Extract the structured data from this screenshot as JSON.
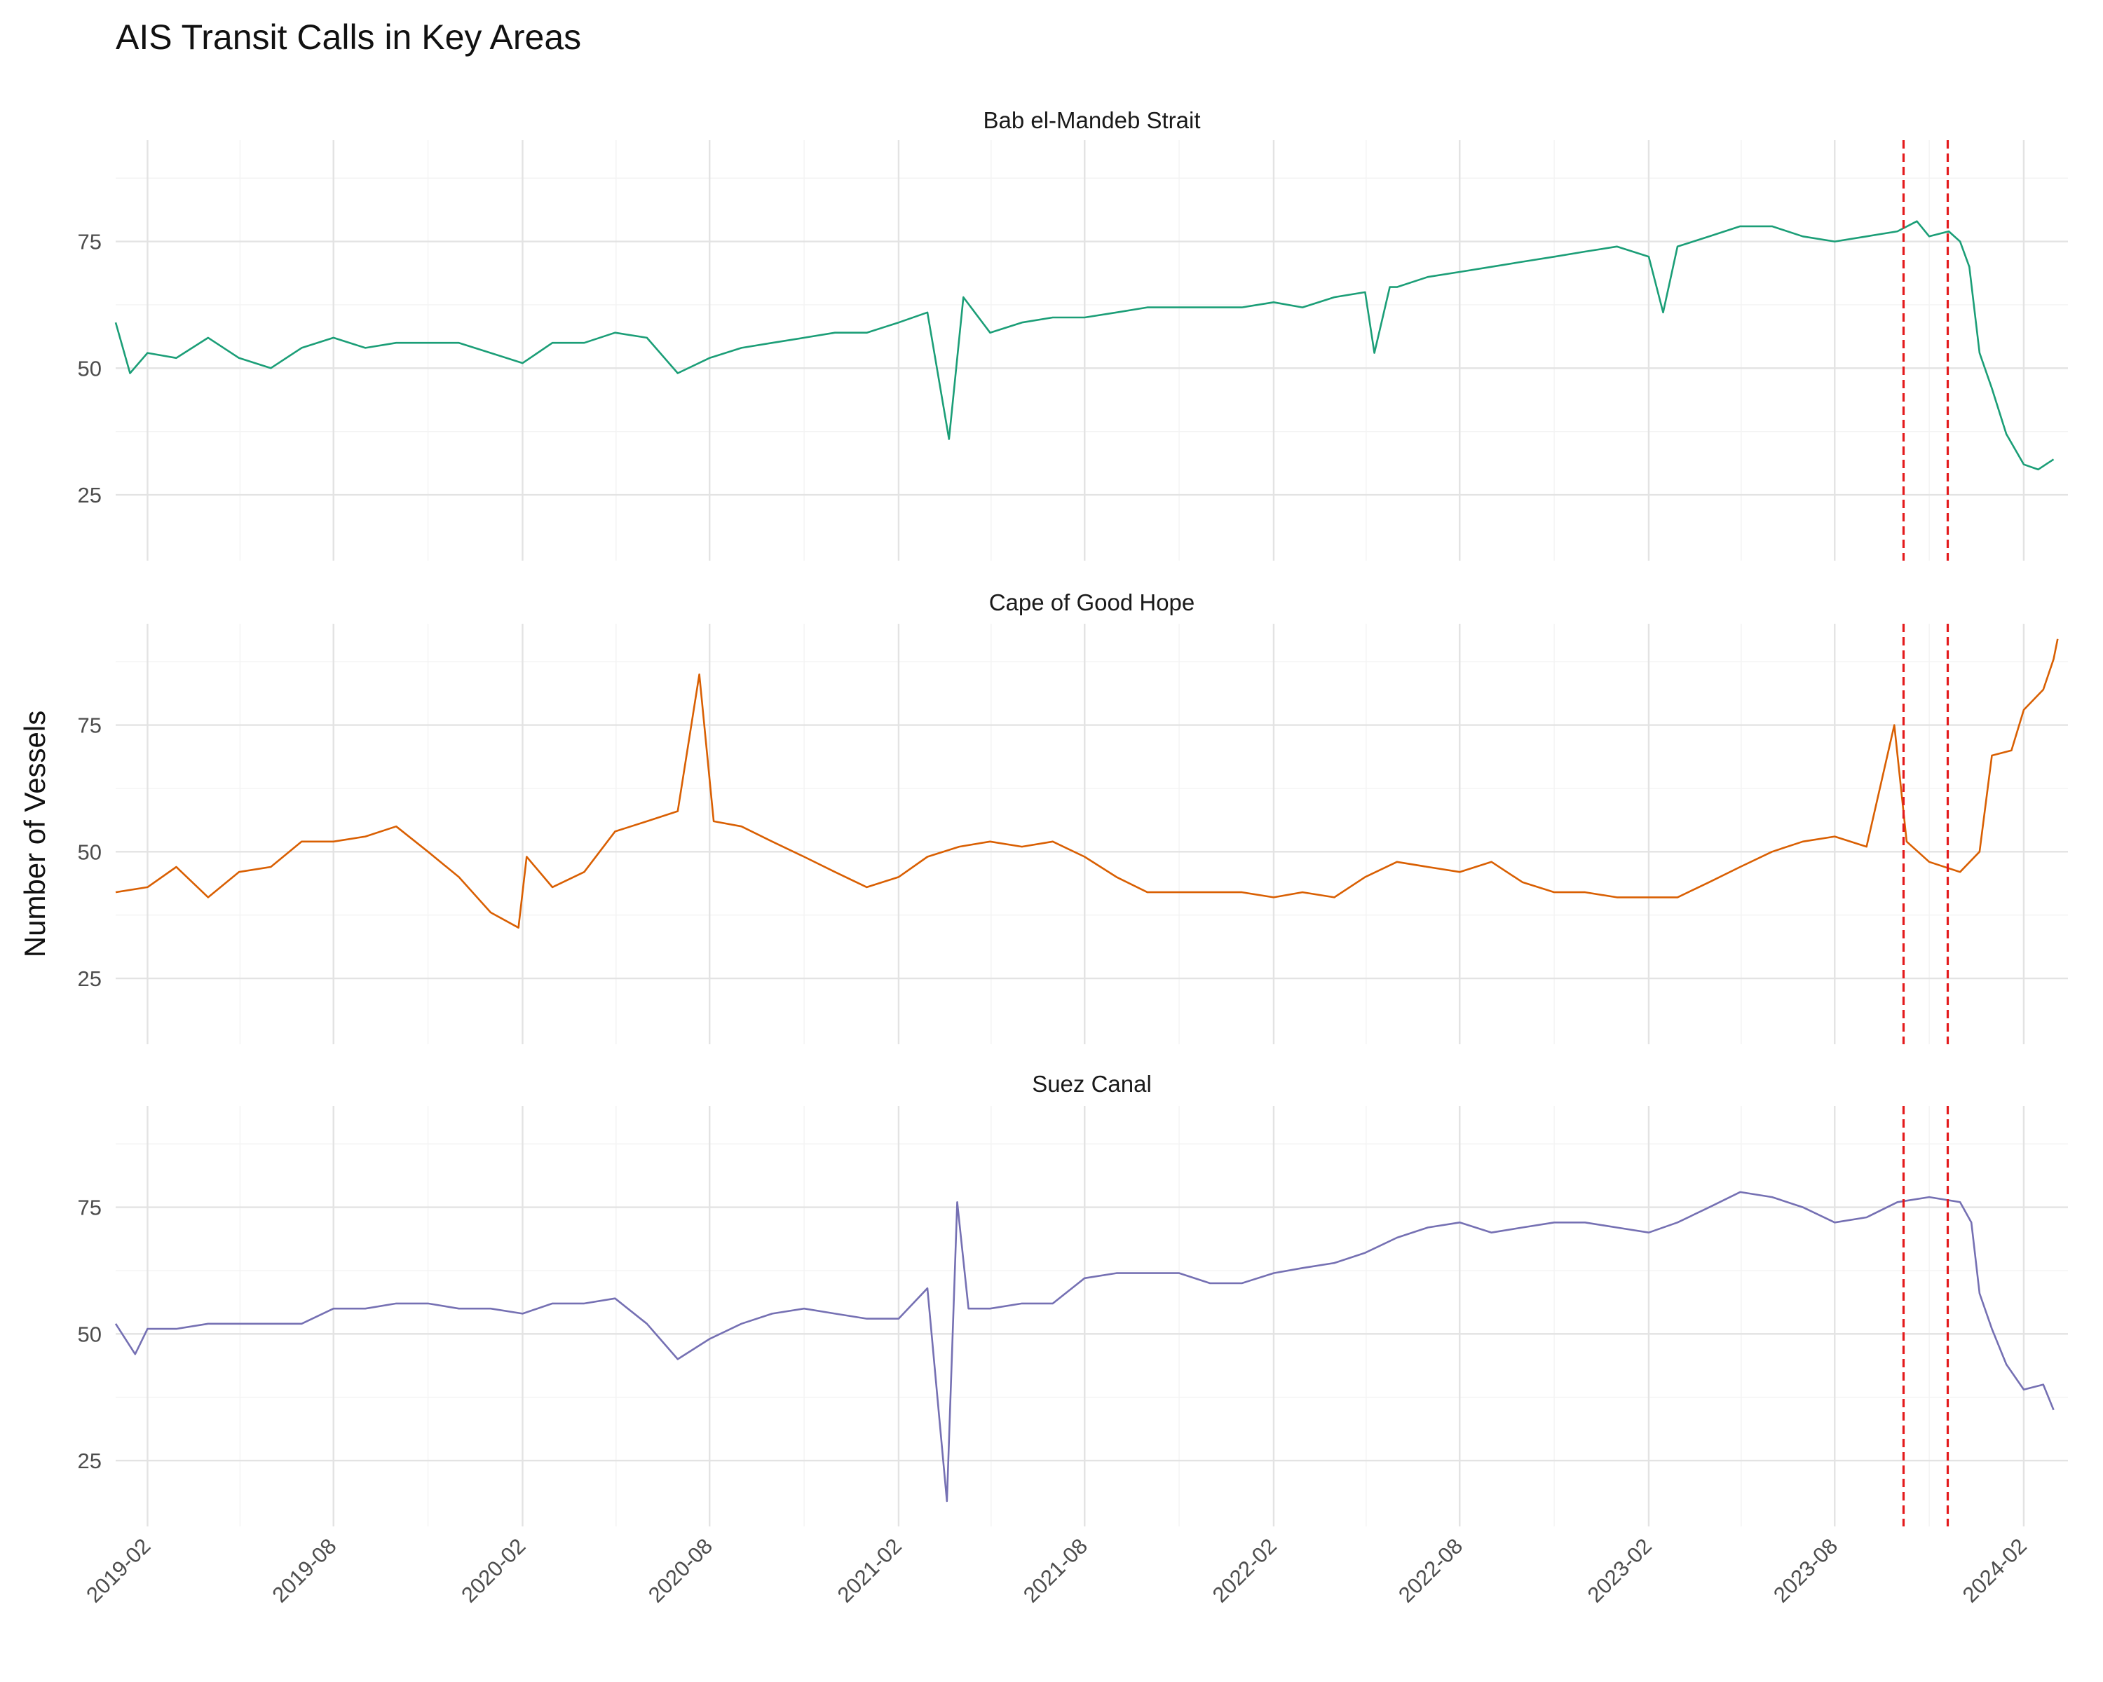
{
  "chart_data": {
    "type": "line",
    "title": "AIS Transit Calls in Key Areas",
    "ylabel": "Number of Vessels",
    "xlabel": "",
    "layout": "3 facets stacked vertically, shared x-axis",
    "x_range": [
      "2019-01-01",
      "2024-03-15"
    ],
    "ylim": [
      12,
      95
    ],
    "y_ticks": [
      25,
      50,
      75
    ],
    "x_ticks": [
      "2019-02",
      "2019-08",
      "2020-02",
      "2020-08",
      "2021-02",
      "2021-08",
      "2022-02",
      "2022-08",
      "2023-02",
      "2023-08",
      "2024-02"
    ],
    "reference_lines": {
      "style": "dashed",
      "color": "#e41a1c",
      "x": [
        "2023-10-07",
        "2023-11-19"
      ]
    },
    "grid": true,
    "legend": "none",
    "series": [
      {
        "name": "Bab el-Mandeb Strait",
        "color": "#1b9e77",
        "points": [
          [
            "2019-01-01",
            59
          ],
          [
            "2019-01-15",
            49
          ],
          [
            "2019-02-01",
            53
          ],
          [
            "2019-03-01",
            52
          ],
          [
            "2019-04-01",
            56
          ],
          [
            "2019-05-01",
            52
          ],
          [
            "2019-06-01",
            50
          ],
          [
            "2019-07-01",
            54
          ],
          [
            "2019-08-01",
            56
          ],
          [
            "2019-09-01",
            54
          ],
          [
            "2019-10-01",
            55
          ],
          [
            "2019-11-01",
            55
          ],
          [
            "2019-12-01",
            55
          ],
          [
            "2020-01-01",
            53
          ],
          [
            "2020-02-01",
            51
          ],
          [
            "2020-03-01",
            55
          ],
          [
            "2020-04-01",
            55
          ],
          [
            "2020-05-01",
            57
          ],
          [
            "2020-06-01",
            56
          ],
          [
            "2020-07-01",
            49
          ],
          [
            "2020-08-01",
            52
          ],
          [
            "2020-09-01",
            54
          ],
          [
            "2020-10-01",
            55
          ],
          [
            "2020-11-01",
            56
          ],
          [
            "2020-12-01",
            57
          ],
          [
            "2021-01-01",
            57
          ],
          [
            "2021-02-01",
            59
          ],
          [
            "2021-03-01",
            61
          ],
          [
            "2021-03-22",
            36
          ],
          [
            "2021-04-05",
            64
          ],
          [
            "2021-05-01",
            57
          ],
          [
            "2021-06-01",
            59
          ],
          [
            "2021-07-01",
            60
          ],
          [
            "2021-08-01",
            60
          ],
          [
            "2021-09-01",
            61
          ],
          [
            "2021-10-01",
            62
          ],
          [
            "2021-11-01",
            62
          ],
          [
            "2021-12-01",
            62
          ],
          [
            "2022-01-01",
            62
          ],
          [
            "2022-02-01",
            63
          ],
          [
            "2022-03-01",
            62
          ],
          [
            "2022-04-01",
            64
          ],
          [
            "2022-05-01",
            65
          ],
          [
            "2022-05-10",
            53
          ],
          [
            "2022-05-25",
            66
          ],
          [
            "2022-06-01",
            66
          ],
          [
            "2022-07-01",
            68
          ],
          [
            "2022-08-01",
            69
          ],
          [
            "2022-09-01",
            70
          ],
          [
            "2022-10-01",
            71
          ],
          [
            "2022-11-01",
            72
          ],
          [
            "2022-12-01",
            73
          ],
          [
            "2023-01-01",
            74
          ],
          [
            "2023-02-01",
            72
          ],
          [
            "2023-02-15",
            61
          ],
          [
            "2023-03-01",
            74
          ],
          [
            "2023-04-01",
            76
          ],
          [
            "2023-05-01",
            78
          ],
          [
            "2023-06-01",
            78
          ],
          [
            "2023-07-01",
            76
          ],
          [
            "2023-08-01",
            75
          ],
          [
            "2023-09-01",
            76
          ],
          [
            "2023-10-01",
            77
          ],
          [
            "2023-10-20",
            79
          ],
          [
            "2023-11-01",
            76
          ],
          [
            "2023-11-20",
            77
          ],
          [
            "2023-12-01",
            75
          ],
          [
            "2023-12-10",
            70
          ],
          [
            "2023-12-20",
            53
          ],
          [
            "2024-01-01",
            46
          ],
          [
            "2024-01-15",
            37
          ],
          [
            "2024-02-01",
            31
          ],
          [
            "2024-02-15",
            30
          ],
          [
            "2024-03-01",
            32
          ]
        ]
      },
      {
        "name": "Cape of Good Hope",
        "color": "#d95f02",
        "points": [
          [
            "2019-01-01",
            42
          ],
          [
            "2019-02-01",
            43
          ],
          [
            "2019-03-01",
            47
          ],
          [
            "2019-04-01",
            41
          ],
          [
            "2019-05-01",
            46
          ],
          [
            "2019-06-01",
            47
          ],
          [
            "2019-07-01",
            52
          ],
          [
            "2019-08-01",
            52
          ],
          [
            "2019-09-01",
            53
          ],
          [
            "2019-10-01",
            55
          ],
          [
            "2019-11-01",
            50
          ],
          [
            "2019-12-01",
            45
          ],
          [
            "2020-01-01",
            38
          ],
          [
            "2020-01-28",
            35
          ],
          [
            "2020-02-05",
            49
          ],
          [
            "2020-03-01",
            43
          ],
          [
            "2020-04-01",
            46
          ],
          [
            "2020-05-01",
            54
          ],
          [
            "2020-06-01",
            56
          ],
          [
            "2020-07-01",
            58
          ],
          [
            "2020-07-22",
            85
          ],
          [
            "2020-08-05",
            56
          ],
          [
            "2020-09-01",
            55
          ],
          [
            "2020-10-01",
            52
          ],
          [
            "2020-11-01",
            49
          ],
          [
            "2020-12-01",
            46
          ],
          [
            "2021-01-01",
            43
          ],
          [
            "2021-02-01",
            45
          ],
          [
            "2021-03-01",
            49
          ],
          [
            "2021-04-01",
            51
          ],
          [
            "2021-05-01",
            52
          ],
          [
            "2021-06-01",
            51
          ],
          [
            "2021-07-01",
            52
          ],
          [
            "2021-08-01",
            49
          ],
          [
            "2021-09-01",
            45
          ],
          [
            "2021-10-01",
            42
          ],
          [
            "2021-11-01",
            42
          ],
          [
            "2021-12-01",
            42
          ],
          [
            "2022-01-01",
            42
          ],
          [
            "2022-02-01",
            41
          ],
          [
            "2022-03-01",
            42
          ],
          [
            "2022-04-01",
            41
          ],
          [
            "2022-05-01",
            45
          ],
          [
            "2022-06-01",
            48
          ],
          [
            "2022-07-01",
            47
          ],
          [
            "2022-08-01",
            46
          ],
          [
            "2022-09-01",
            48
          ],
          [
            "2022-10-01",
            44
          ],
          [
            "2022-11-01",
            42
          ],
          [
            "2022-12-01",
            42
          ],
          [
            "2023-01-01",
            41
          ],
          [
            "2023-02-01",
            41
          ],
          [
            "2023-03-01",
            41
          ],
          [
            "2023-04-01",
            44
          ],
          [
            "2023-05-01",
            47
          ],
          [
            "2023-06-01",
            50
          ],
          [
            "2023-07-01",
            52
          ],
          [
            "2023-08-01",
            53
          ],
          [
            "2023-09-01",
            51
          ],
          [
            "2023-09-28",
            75
          ],
          [
            "2023-10-10",
            52
          ],
          [
            "2023-11-01",
            48
          ],
          [
            "2023-12-01",
            46
          ],
          [
            "2023-12-20",
            50
          ],
          [
            "2024-01-01",
            69
          ],
          [
            "2024-01-20",
            70
          ],
          [
            "2024-02-01",
            78
          ],
          [
            "2024-02-20",
            82
          ],
          [
            "2024-03-01",
            88
          ],
          [
            "2024-03-05",
            92
          ]
        ]
      },
      {
        "name": "Suez Canal",
        "color": "#7570b3",
        "points": [
          [
            "2019-01-01",
            52
          ],
          [
            "2019-01-20",
            46
          ],
          [
            "2019-02-01",
            51
          ],
          [
            "2019-03-01",
            51
          ],
          [
            "2019-04-01",
            52
          ],
          [
            "2019-05-01",
            52
          ],
          [
            "2019-06-01",
            52
          ],
          [
            "2019-07-01",
            52
          ],
          [
            "2019-08-01",
            55
          ],
          [
            "2019-09-01",
            55
          ],
          [
            "2019-10-01",
            56
          ],
          [
            "2019-11-01",
            56
          ],
          [
            "2019-12-01",
            55
          ],
          [
            "2020-01-01",
            55
          ],
          [
            "2020-02-01",
            54
          ],
          [
            "2020-03-01",
            56
          ],
          [
            "2020-04-01",
            56
          ],
          [
            "2020-05-01",
            57
          ],
          [
            "2020-06-01",
            52
          ],
          [
            "2020-07-01",
            45
          ],
          [
            "2020-08-01",
            49
          ],
          [
            "2020-09-01",
            52
          ],
          [
            "2020-10-01",
            54
          ],
          [
            "2020-11-01",
            55
          ],
          [
            "2020-12-01",
            54
          ],
          [
            "2021-01-01",
            53
          ],
          [
            "2021-02-01",
            53
          ],
          [
            "2021-03-01",
            59
          ],
          [
            "2021-03-20",
            17
          ],
          [
            "2021-03-30",
            76
          ],
          [
            "2021-04-10",
            55
          ],
          [
            "2021-05-01",
            55
          ],
          [
            "2021-06-01",
            56
          ],
          [
            "2021-07-01",
            56
          ],
          [
            "2021-08-01",
            61
          ],
          [
            "2021-09-01",
            62
          ],
          [
            "2021-10-01",
            62
          ],
          [
            "2021-11-01",
            62
          ],
          [
            "2021-12-01",
            60
          ],
          [
            "2022-01-01",
            60
          ],
          [
            "2022-02-01",
            62
          ],
          [
            "2022-03-01",
            63
          ],
          [
            "2022-04-01",
            64
          ],
          [
            "2022-05-01",
            66
          ],
          [
            "2022-06-01",
            69
          ],
          [
            "2022-07-01",
            71
          ],
          [
            "2022-08-01",
            72
          ],
          [
            "2022-09-01",
            70
          ],
          [
            "2022-10-01",
            71
          ],
          [
            "2022-11-01",
            72
          ],
          [
            "2022-12-01",
            72
          ],
          [
            "2023-01-01",
            71
          ],
          [
            "2023-02-01",
            70
          ],
          [
            "2023-03-01",
            72
          ],
          [
            "2023-04-01",
            75
          ],
          [
            "2023-05-01",
            78
          ],
          [
            "2023-06-01",
            77
          ],
          [
            "2023-07-01",
            75
          ],
          [
            "2023-08-01",
            72
          ],
          [
            "2023-09-01",
            73
          ],
          [
            "2023-10-01",
            76
          ],
          [
            "2023-11-01",
            77
          ],
          [
            "2023-12-01",
            76
          ],
          [
            "2023-12-12",
            72
          ],
          [
            "2023-12-20",
            58
          ],
          [
            "2024-01-01",
            51
          ],
          [
            "2024-01-15",
            44
          ],
          [
            "2024-02-01",
            39
          ],
          [
            "2024-02-20",
            40
          ],
          [
            "2024-03-01",
            35
          ]
        ]
      }
    ]
  }
}
